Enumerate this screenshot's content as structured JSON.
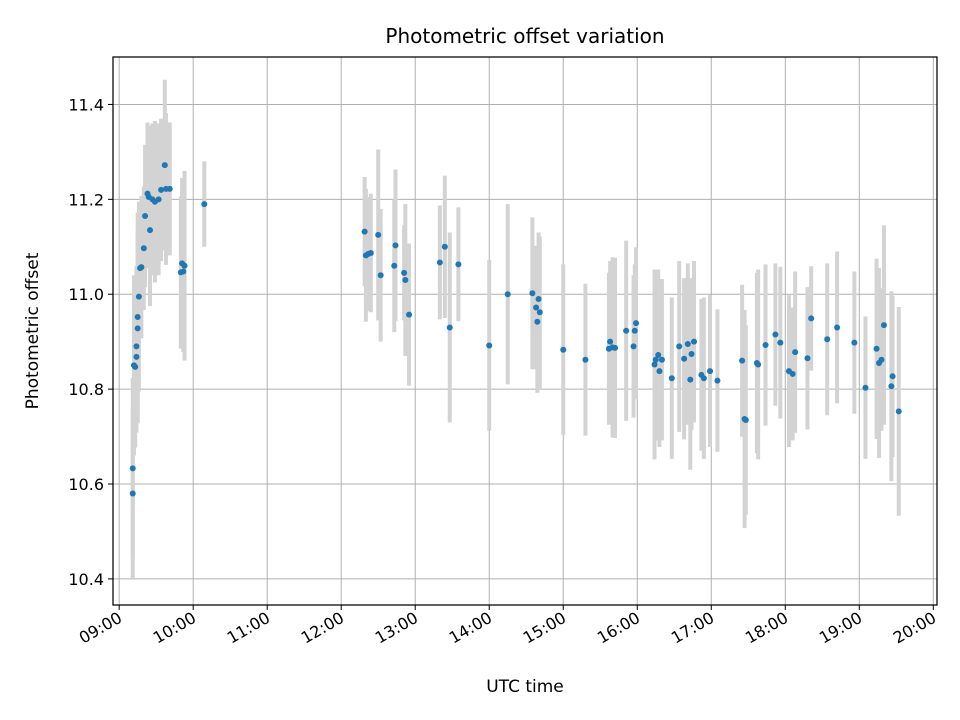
{
  "chart_data": {
    "type": "scatter",
    "title": "Photometric offset variation",
    "xlabel": "UTC time",
    "ylabel": "Photometric offset",
    "xlim": [
      "08:55",
      "20:03"
    ],
    "ylim": [
      10.345,
      11.5
    ],
    "grid": true,
    "x_ticks": [
      "09:00",
      "10:00",
      "11:00",
      "12:00",
      "13:00",
      "14:00",
      "15:00",
      "16:00",
      "17:00",
      "18:00",
      "19:00",
      "20:00"
    ],
    "y_ticks": [
      "10.4",
      "10.6",
      "10.8",
      "11.0",
      "11.2",
      "11.4"
    ],
    "colors": {
      "points": "#1f77b4",
      "errorbars": "#d3d3d3",
      "grid": "#b0b0b0"
    },
    "points": [
      {
        "t": "09:11",
        "y": 10.58,
        "err": 0.18
      },
      {
        "t": "09:11",
        "y": 10.633,
        "err": 0.19
      },
      {
        "t": "09:12",
        "y": 10.85,
        "err": 0.19
      },
      {
        "t": "09:13",
        "y": 10.847,
        "err": 0.17
      },
      {
        "t": "09:14",
        "y": 10.868,
        "err": 0.16
      },
      {
        "t": "09:14",
        "y": 10.89,
        "err": 0.17
      },
      {
        "t": "09:15",
        "y": 10.928,
        "err": 0.2
      },
      {
        "t": "09:15",
        "y": 10.952,
        "err": 0.22
      },
      {
        "t": "09:16",
        "y": 10.995,
        "err": 0.2
      },
      {
        "t": "09:17",
        "y": 11.055,
        "err": 0.14
      },
      {
        "t": "09:18",
        "y": 11.057,
        "err": 0.15
      },
      {
        "t": "09:20",
        "y": 11.097,
        "err": 0.13
      },
      {
        "t": "09:21",
        "y": 11.165,
        "err": 0.15
      },
      {
        "t": "09:23",
        "y": 11.212,
        "err": 0.15
      },
      {
        "t": "09:24",
        "y": 11.205,
        "err": 0.15
      },
      {
        "t": "09:25",
        "y": 11.135,
        "err": 0.16
      },
      {
        "t": "09:27",
        "y": 11.2,
        "err": 0.16
      },
      {
        "t": "09:29",
        "y": 11.195,
        "err": 0.17
      },
      {
        "t": "09:32",
        "y": 11.2,
        "err": 0.16
      },
      {
        "t": "09:34",
        "y": 11.22,
        "err": 0.15
      },
      {
        "t": "09:37",
        "y": 11.272,
        "err": 0.18
      },
      {
        "t": "09:38",
        "y": 11.222,
        "err": 0.16
      },
      {
        "t": "09:41",
        "y": 11.222,
        "err": 0.14
      },
      {
        "t": "09:50",
        "y": 11.046,
        "err": 0.16
      },
      {
        "t": "09:51",
        "y": 11.065,
        "err": 0.18
      },
      {
        "t": "09:52",
        "y": 11.048,
        "err": 0.17
      },
      {
        "t": "09:53",
        "y": 11.06,
        "err": 0.2
      },
      {
        "t": "10:09",
        "y": 11.19,
        "err": 0.09
      },
      {
        "t": "12:19",
        "y": 11.132,
        "err": 0.115
      },
      {
        "t": "12:20",
        "y": 11.082,
        "err": 0.14
      },
      {
        "t": "12:22",
        "y": 11.085,
        "err": 0.12
      },
      {
        "t": "12:24",
        "y": 11.087,
        "err": 0.125
      },
      {
        "t": "12:30",
        "y": 11.125,
        "err": 0.18
      },
      {
        "t": "12:32",
        "y": 11.04,
        "err": 0.14
      },
      {
        "t": "12:43",
        "y": 11.06,
        "err": 0.14
      },
      {
        "t": "12:44",
        "y": 11.103,
        "err": 0.16
      },
      {
        "t": "12:51",
        "y": 11.045,
        "err": 0.1
      },
      {
        "t": "12:52",
        "y": 11.03,
        "err": 0.16
      },
      {
        "t": "12:55",
        "y": 10.957,
        "err": 0.15
      },
      {
        "t": "13:20",
        "y": 11.067,
        "err": 0.12
      },
      {
        "t": "13:24",
        "y": 11.1,
        "err": 0.15
      },
      {
        "t": "13:28",
        "y": 10.93,
        "err": 0.2
      },
      {
        "t": "13:35",
        "y": 11.063,
        "err": 0.12
      },
      {
        "t": "14:00",
        "y": 10.892,
        "err": 0.18
      },
      {
        "t": "14:15",
        "y": 11.0,
        "err": 0.19
      },
      {
        "t": "14:35",
        "y": 11.002,
        "err": 0.16
      },
      {
        "t": "14:38",
        "y": 10.972,
        "err": 0.13
      },
      {
        "t": "14:39",
        "y": 10.942,
        "err": 0.15
      },
      {
        "t": "14:40",
        "y": 10.99,
        "err": 0.14
      },
      {
        "t": "14:41",
        "y": 10.962,
        "err": 0.16
      },
      {
        "t": "15:00",
        "y": 10.883,
        "err": 0.18
      },
      {
        "t": "15:18",
        "y": 10.862,
        "err": 0.16
      },
      {
        "t": "15:37",
        "y": 10.885,
        "err": 0.16
      },
      {
        "t": "15:38",
        "y": 10.9,
        "err": 0.17
      },
      {
        "t": "15:40",
        "y": 10.888,
        "err": 0.19
      },
      {
        "t": "15:42",
        "y": 10.887,
        "err": 0.19
      },
      {
        "t": "15:51",
        "y": 10.923,
        "err": 0.19
      },
      {
        "t": "15:57",
        "y": 10.89,
        "err": 0.15
      },
      {
        "t": "15:58",
        "y": 10.923,
        "err": 0.14
      },
      {
        "t": "15:59",
        "y": 10.939,
        "err": 0.16
      },
      {
        "t": "16:14",
        "y": 10.852,
        "err": 0.2
      },
      {
        "t": "16:15",
        "y": 10.862,
        "err": 0.17
      },
      {
        "t": "16:17",
        "y": 10.872,
        "err": 0.18
      },
      {
        "t": "16:18",
        "y": 10.838,
        "err": 0.16
      },
      {
        "t": "16:20",
        "y": 10.862,
        "err": 0.17
      },
      {
        "t": "16:28",
        "y": 10.823,
        "err": 0.17
      },
      {
        "t": "16:34",
        "y": 10.89,
        "err": 0.18
      },
      {
        "t": "16:38",
        "y": 10.864,
        "err": 0.17
      },
      {
        "t": "16:41",
        "y": 10.895,
        "err": 0.17
      },
      {
        "t": "16:43",
        "y": 10.82,
        "err": 0.19
      },
      {
        "t": "16:44",
        "y": 10.874,
        "err": 0.16
      },
      {
        "t": "16:46",
        "y": 10.9,
        "err": 0.17
      },
      {
        "t": "16:52",
        "y": 10.83,
        "err": 0.16
      },
      {
        "t": "16:54",
        "y": 10.823,
        "err": 0.17
      },
      {
        "t": "16:59",
        "y": 10.838,
        "err": 0.16
      },
      {
        "t": "17:05",
        "y": 10.818,
        "err": 0.15
      },
      {
        "t": "17:25",
        "y": 10.86,
        "err": 0.16
      },
      {
        "t": "17:27",
        "y": 10.737,
        "err": 0.23
      },
      {
        "t": "17:28",
        "y": 10.735,
        "err": 0.2
      },
      {
        "t": "17:37",
        "y": 10.855,
        "err": 0.19
      },
      {
        "t": "17:38",
        "y": 10.852,
        "err": 0.2
      },
      {
        "t": "17:44",
        "y": 10.893,
        "err": 0.17
      },
      {
        "t": "17:52",
        "y": 10.915,
        "err": 0.15
      },
      {
        "t": "17:56",
        "y": 10.898,
        "err": 0.16
      },
      {
        "t": "18:03",
        "y": 10.838,
        "err": 0.16
      },
      {
        "t": "18:06",
        "y": 10.832,
        "err": 0.14
      },
      {
        "t": "18:08",
        "y": 10.878,
        "err": 0.17
      },
      {
        "t": "18:18",
        "y": 10.865,
        "err": 0.15
      },
      {
        "t": "18:21",
        "y": 10.949,
        "err": 0.11
      },
      {
        "t": "18:34",
        "y": 10.905,
        "err": 0.16
      },
      {
        "t": "18:42",
        "y": 10.93,
        "err": 0.16
      },
      {
        "t": "18:56",
        "y": 10.898,
        "err": 0.15
      },
      {
        "t": "19:05",
        "y": 10.803,
        "err": 0.15
      },
      {
        "t": "19:14",
        "y": 10.885,
        "err": 0.19
      },
      {
        "t": "19:16",
        "y": 10.855,
        "err": 0.2
      },
      {
        "t": "19:18",
        "y": 10.862,
        "err": 0.15
      },
      {
        "t": "19:20",
        "y": 10.935,
        "err": 0.21
      },
      {
        "t": "19:26",
        "y": 10.806,
        "err": 0.2
      },
      {
        "t": "19:27",
        "y": 10.827,
        "err": 0.17
      },
      {
        "t": "19:32",
        "y": 10.753,
        "err": 0.22
      }
    ]
  }
}
